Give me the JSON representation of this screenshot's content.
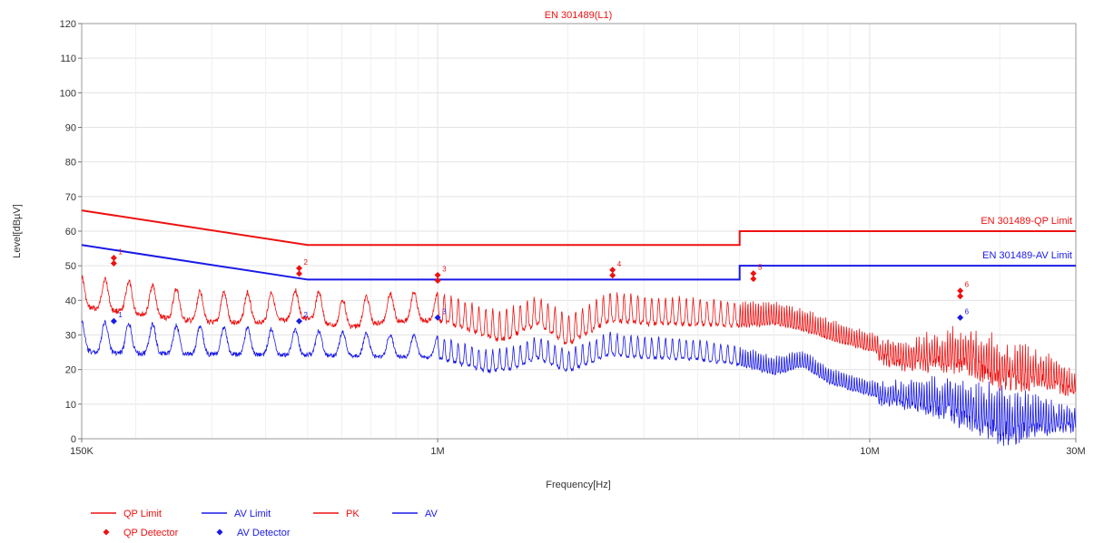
{
  "chart_data": {
    "type": "line",
    "title": "EN 301489(L1)",
    "xlabel": "Frequency[Hz]",
    "ylabel": "Level[dBµV]",
    "x_scale": "log",
    "xlim": [
      150000,
      30000000
    ],
    "ylim": [
      0,
      120
    ],
    "x_ticks": [
      {
        "value": 150000,
        "label": "150K"
      },
      {
        "value": 1000000,
        "label": "1M"
      },
      {
        "value": 10000000,
        "label": "10M"
      },
      {
        "value": 30000000,
        "label": "30M"
      }
    ],
    "y_ticks": [
      0,
      10,
      20,
      30,
      40,
      50,
      60,
      70,
      80,
      90,
      100,
      110,
      120
    ],
    "grid": true,
    "colors": {
      "red": "#ee1111",
      "blue": "#1a1ae6"
    },
    "limit_lines": [
      {
        "name": "QP Limit",
        "color": "#ee1111",
        "label": "EN 301489-QP Limit",
        "points": [
          [
            150000,
            66
          ],
          [
            500000,
            56
          ],
          [
            5000000,
            56
          ],
          [
            5000000,
            60
          ],
          [
            30000000,
            60
          ]
        ]
      },
      {
        "name": "AV Limit",
        "color": "#1a1ae6",
        "label": "EN 301489-AV Limit",
        "points": [
          [
            150000,
            56
          ],
          [
            500000,
            46
          ],
          [
            5000000,
            46
          ],
          [
            5000000,
            50
          ],
          [
            30000000,
            50
          ]
        ]
      }
    ],
    "series": [
      {
        "name": "PK",
        "color": "#ee1111",
        "envelope": [
          [
            150000,
            48
          ],
          [
            170000,
            47
          ],
          [
            200000,
            46
          ],
          [
            250000,
            44
          ],
          [
            300000,
            43
          ],
          [
            400000,
            43
          ],
          [
            500000,
            44
          ],
          [
            600000,
            41
          ],
          [
            700000,
            42
          ],
          [
            800000,
            43
          ],
          [
            1000000,
            43
          ],
          [
            1200000,
            40
          ],
          [
            1400000,
            37
          ],
          [
            1700000,
            42
          ],
          [
            2000000,
            36
          ],
          [
            2500000,
            43
          ],
          [
            3000000,
            42
          ],
          [
            4000000,
            41
          ],
          [
            5000000,
            40
          ],
          [
            6000000,
            40
          ],
          [
            7000000,
            38
          ],
          [
            8000000,
            35
          ],
          [
            10000000,
            31
          ],
          [
            12000000,
            30
          ],
          [
            14000000,
            32
          ],
          [
            17000000,
            34
          ],
          [
            20000000,
            31
          ],
          [
            25000000,
            27
          ],
          [
            30000000,
            20
          ]
        ],
        "ripple_db": [
          [
            150000,
            9
          ],
          [
            1000000,
            8
          ],
          [
            3000000,
            8
          ],
          [
            10000000,
            5
          ],
          [
            20000000,
            11
          ],
          [
            30000000,
            5
          ]
        ]
      },
      {
        "name": "AV",
        "color": "#1a1ae6",
        "envelope": [
          [
            150000,
            35
          ],
          [
            200000,
            34
          ],
          [
            300000,
            33
          ],
          [
            500000,
            32
          ],
          [
            700000,
            31
          ],
          [
            1000000,
            30
          ],
          [
            1300000,
            26
          ],
          [
            1500000,
            27
          ],
          [
            1700000,
            30
          ],
          [
            2000000,
            26
          ],
          [
            2500000,
            31
          ],
          [
            3000000,
            30
          ],
          [
            4000000,
            29
          ],
          [
            5000000,
            27
          ],
          [
            6000000,
            24
          ],
          [
            7000000,
            26
          ],
          [
            8000000,
            21
          ],
          [
            10000000,
            17
          ],
          [
            12000000,
            18
          ],
          [
            15000000,
            20
          ],
          [
            20000000,
            17
          ],
          [
            25000000,
            14
          ],
          [
            30000000,
            10
          ]
        ],
        "ripple_db": [
          [
            150000,
            9
          ],
          [
            1000000,
            6
          ],
          [
            3000000,
            6
          ],
          [
            10000000,
            4
          ],
          [
            20000000,
            12
          ],
          [
            30000000,
            5
          ]
        ]
      }
    ],
    "qp_detector": [
      {
        "label": "1",
        "freq": 178000,
        "level": 51.5
      },
      {
        "label": "2",
        "freq": 478000,
        "level": 48.5
      },
      {
        "label": "3",
        "freq": 1000000,
        "level": 46.5
      },
      {
        "label": "4",
        "freq": 2540000,
        "level": 48.0
      },
      {
        "label": "5",
        "freq": 5380000,
        "level": 47.0
      },
      {
        "label": "6",
        "freq": 16200000,
        "level": 42.0
      }
    ],
    "av_detector": [
      {
        "label": "1",
        "freq": 178000,
        "level": 34.0
      },
      {
        "label": "2",
        "freq": 478000,
        "level": 34.0
      },
      {
        "label": "3",
        "freq": 1000000,
        "level": 35.0
      },
      {
        "label": "6",
        "freq": 16200000,
        "level": 35.0
      }
    ],
    "legend": [
      {
        "label": "QP Limit",
        "kind": "line",
        "color": "#ee1111"
      },
      {
        "label": "AV Limit",
        "kind": "line",
        "color": "#1a1ae6"
      },
      {
        "label": "PK",
        "kind": "line",
        "color": "#ee1111"
      },
      {
        "label": "AV",
        "kind": "line",
        "color": "#1a1ae6"
      },
      {
        "label": "QP Detector",
        "kind": "marker",
        "color": "#ee1111"
      },
      {
        "label": "AV Detector",
        "kind": "marker",
        "color": "#1a1ae6"
      }
    ],
    "legend_position": "bottom-left"
  }
}
